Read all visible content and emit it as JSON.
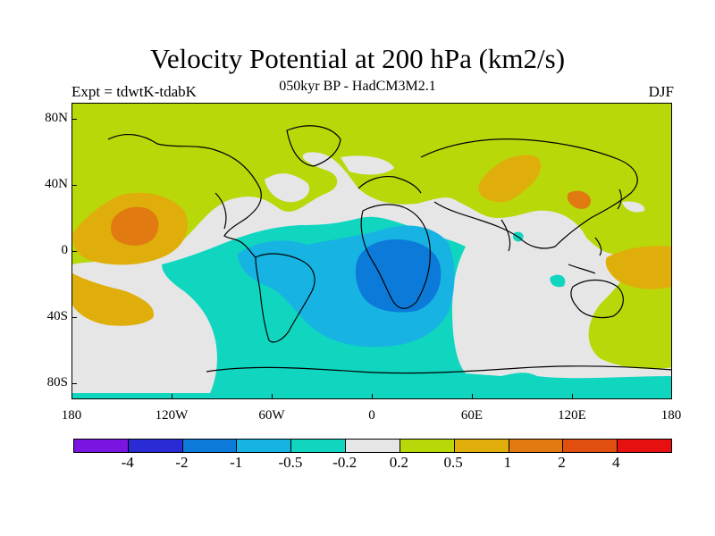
{
  "title": "Velocity Potential at 200 hPa (km2/s)",
  "subtitle": "050kyr BP - HadCM3M2.1",
  "left_label": "Expt = tdwtK-tdabK",
  "right_label": "DJF",
  "latitude_labels": [
    "80N",
    "40N",
    "0",
    "40S",
    "80S"
  ],
  "longitude_labels": [
    "180",
    "120W",
    "60W",
    "0",
    "60E",
    "120E",
    "180"
  ],
  "colorbar": {
    "colors": [
      "#7a14e0",
      "#2b2bd6",
      "#0b7ad8",
      "#16b3e3",
      "#10d6c0",
      "#e6e6e6",
      "#b8d80a",
      "#e0ae0b",
      "#e17a10",
      "#e04e10",
      "#e61010"
    ],
    "labels": [
      "-4",
      "-2",
      "-1",
      "-0.5",
      "-0.2",
      "0.2",
      "0.5",
      "1",
      "2",
      "4"
    ]
  },
  "field_colors": {
    "background": "#b8d80a",
    "neutral": "#e6e6e6",
    "weak_negative": "#10d6c0",
    "moderate_negative": "#16b3e3",
    "strong_negative": "#0b7ad8",
    "weak_positive_orange": "#e0ae0b",
    "strong_positive": "#e17a10"
  }
}
